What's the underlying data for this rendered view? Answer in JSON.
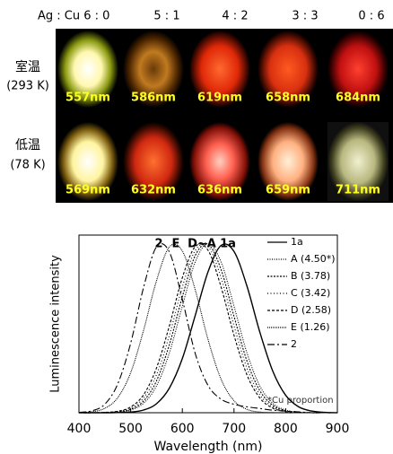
{
  "photo_grid": {
    "columns": [
      "Ag : Cu 6 : 0",
      "5 : 1",
      "4 : 2",
      "3 : 3",
      "0 : 6"
    ],
    "rows": [
      {
        "label": "室温",
        "temperature": "(293 K)",
        "wavelengths": [
          "557nm",
          "586nm",
          "619nm",
          "658nm",
          "684nm"
        ]
      },
      {
        "label": "低温",
        "temperature": "(78 K)",
        "wavelengths": [
          "569nm",
          "632nm",
          "636nm",
          "659nm",
          "711nm"
        ]
      }
    ]
  },
  "chart_data": {
    "type": "line",
    "xlabel": "Wavelength (nm)",
    "ylabel": "Luminescence intensity",
    "annotations": [
      "2",
      "E",
      "D~A",
      "1a"
    ],
    "note": "*Cu proportion",
    "xlim": [
      400,
      900
    ],
    "xticks": [
      400,
      500,
      600,
      700,
      800,
      900
    ],
    "ylim": [
      0,
      1.05
    ],
    "x": [
      400,
      425,
      450,
      475,
      500,
      525,
      550,
      575,
      600,
      625,
      650,
      675,
      700,
      725,
      750,
      775,
      800,
      825,
      850,
      875,
      900
    ],
    "series": [
      {
        "name": "1a",
        "color": "#000000",
        "dash": "none",
        "values": [
          0,
          0,
          0,
          0.001,
          0.004,
          0.016,
          0.053,
          0.146,
          0.32,
          0.575,
          0.835,
          0.989,
          0.953,
          0.749,
          0.476,
          0.246,
          0.103,
          0.035,
          0.01,
          0.002,
          0
        ]
      },
      {
        "name": "A (4.50*)",
        "color": "#000000",
        "dash": "1 1.5",
        "values": [
          0,
          0,
          0.001,
          0.003,
          0.016,
          0.056,
          0.158,
          0.354,
          0.63,
          0.891,
          1,
          0.891,
          0.63,
          0.354,
          0.158,
          0.056,
          0.016,
          0.003,
          0.001,
          0,
          0
        ]
      },
      {
        "name": "B (3.78)",
        "color": "#000000",
        "dash": "2 1.5",
        "values": [
          0,
          0,
          0.001,
          0.005,
          0.02,
          0.069,
          0.188,
          0.403,
          0.685,
          0.929,
          0.995,
          0.846,
          0.57,
          0.306,
          0.13,
          0.044,
          0.012,
          0.002,
          0,
          0,
          0
        ]
      },
      {
        "name": "C (3.42)",
        "color": "#000000",
        "dash": "1 2.5",
        "values": [
          0,
          0,
          0.001,
          0.007,
          0.027,
          0.087,
          0.224,
          0.458,
          0.743,
          0.959,
          0.982,
          0.798,
          0.514,
          0.264,
          0.106,
          0.034,
          0.009,
          0.002,
          0,
          0,
          0
        ]
      },
      {
        "name": "D (2.58)",
        "color": "#000000",
        "dash": "3 2",
        "values": [
          0,
          0,
          0.002,
          0.009,
          0.034,
          0.106,
          0.264,
          0.514,
          0.798,
          0.982,
          0.959,
          0.743,
          0.458,
          0.224,
          0.087,
          0.027,
          0.007,
          0.001,
          0,
          0,
          0
        ]
      },
      {
        "name": "E (1.26)",
        "color": "#000000",
        "dash": "1 1",
        "values": [
          0.001,
          0.006,
          0.026,
          0.089,
          0.236,
          0.487,
          0.78,
          0.98,
          0.956,
          0.726,
          0.43,
          0.198,
          0.071,
          0.02,
          0.004,
          0.001,
          0,
          0,
          0,
          0,
          0
        ]
      },
      {
        "name": "2",
        "color": "#000000",
        "dash": "8 3 2 3",
        "values": [
          0.002,
          0.011,
          0.05,
          0.17,
          0.41,
          0.74,
          0.98,
          0.95,
          0.67,
          0.35,
          0.16,
          0.08,
          0.05,
          0.035,
          0.025,
          0.015,
          0.01,
          0.005,
          0,
          0,
          0
        ]
      }
    ]
  }
}
